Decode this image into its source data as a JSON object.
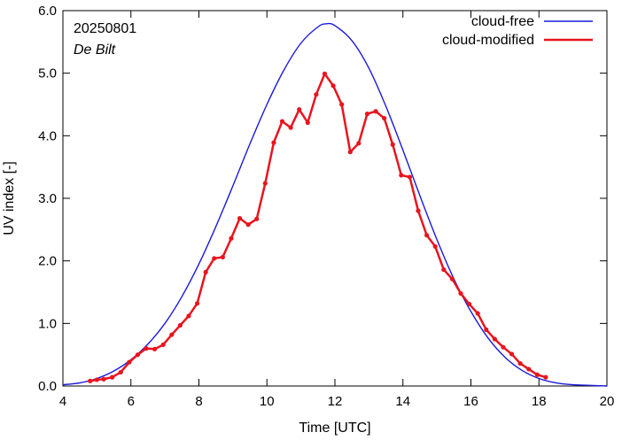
{
  "chart_data": {
    "type": "line",
    "title": "",
    "annotations": [
      "20250801",
      "De Bilt"
    ],
    "xlabel": "Time  [UTC]",
    "ylabel": "UV index  [-]",
    "xlim": [
      4,
      20
    ],
    "ylim": [
      0,
      6
    ],
    "x_ticks": [
      4,
      6,
      8,
      10,
      12,
      14,
      16,
      18,
      20
    ],
    "x_tick_labels": [
      "4",
      "6",
      "8",
      "10",
      "12",
      "14",
      "16",
      "18",
      "20"
    ],
    "y_ticks": [
      0,
      1,
      2,
      3,
      4,
      5,
      6
    ],
    "y_tick_labels": [
      "0.0",
      "1.0",
      "2.0",
      "3.0",
      "4.0",
      "5.0",
      "6.0"
    ],
    "legend_position": "top-right",
    "series": [
      {
        "name": "cloud-free",
        "color": "#1a1adc",
        "style": "line",
        "x": [
          4.0,
          4.5,
          5.0,
          5.5,
          6.0,
          6.5,
          7.0,
          7.5,
          8.0,
          8.5,
          9.0,
          9.5,
          10.0,
          10.5,
          11.0,
          11.5,
          11.75,
          12.0,
          12.5,
          13.0,
          13.5,
          14.0,
          14.5,
          15.0,
          15.5,
          16.0,
          16.5,
          17.0,
          17.5,
          18.0,
          18.5,
          19.0,
          19.5,
          20.0
        ],
        "y": [
          0.02,
          0.05,
          0.12,
          0.24,
          0.42,
          0.67,
          1.0,
          1.43,
          1.95,
          2.55,
          3.2,
          3.87,
          4.5,
          5.05,
          5.48,
          5.74,
          5.79,
          5.76,
          5.52,
          5.08,
          4.47,
          3.77,
          3.04,
          2.34,
          1.71,
          1.19,
          0.77,
          0.46,
          0.25,
          0.12,
          0.05,
          0.02,
          0.01,
          0.0
        ]
      },
      {
        "name": "cloud-modified",
        "color": "#e8141e",
        "style": "line-points",
        "x": [
          4.8,
          5.0,
          5.2,
          5.45,
          5.7,
          5.95,
          6.2,
          6.45,
          6.7,
          6.95,
          7.2,
          7.45,
          7.7,
          7.95,
          8.2,
          8.45,
          8.7,
          8.95,
          9.2,
          9.45,
          9.7,
          9.95,
          10.2,
          10.45,
          10.7,
          10.95,
          11.2,
          11.45,
          11.7,
          11.95,
          12.2,
          12.45,
          12.7,
          12.95,
          13.2,
          13.45,
          13.7,
          13.95,
          14.2,
          14.45,
          14.7,
          14.95,
          15.2,
          15.45,
          15.7,
          15.95,
          16.2,
          16.45,
          16.7,
          16.95,
          17.2,
          17.45,
          17.7,
          17.95,
          18.2
        ],
        "y": [
          0.08,
          0.1,
          0.11,
          0.14,
          0.22,
          0.38,
          0.5,
          0.6,
          0.59,
          0.66,
          0.82,
          0.97,
          1.12,
          1.32,
          1.82,
          2.04,
          2.06,
          2.36,
          2.68,
          2.58,
          2.67,
          3.24,
          3.89,
          4.23,
          4.13,
          4.42,
          4.21,
          4.66,
          4.99,
          4.8,
          4.5,
          3.74,
          3.88,
          4.35,
          4.39,
          4.28,
          3.86,
          3.37,
          3.34,
          2.8,
          2.41,
          2.23,
          1.86,
          1.71,
          1.48,
          1.31,
          1.16,
          0.9,
          0.75,
          0.62,
          0.51,
          0.36,
          0.27,
          0.18,
          0.14
        ]
      }
    ]
  }
}
